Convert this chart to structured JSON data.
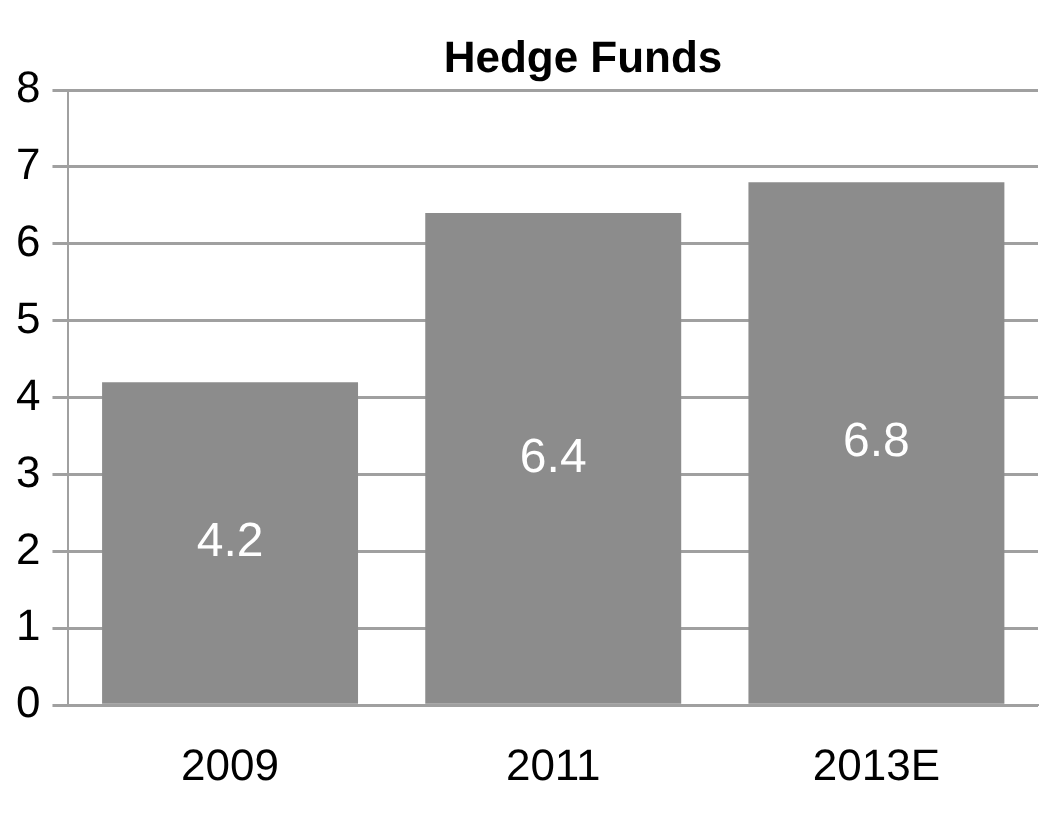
{
  "chart_data": {
    "type": "bar",
    "title": "Hedge Funds",
    "categories": [
      "2009",
      "2011",
      "2013E"
    ],
    "values": [
      4.2,
      6.4,
      6.8
    ],
    "color": "#8c8c8c",
    "ylim": [
      0,
      8
    ],
    "yticks": [
      0,
      1,
      2,
      3,
      4,
      5,
      6,
      7,
      8
    ],
    "grid": "y",
    "data_labels": true
  }
}
